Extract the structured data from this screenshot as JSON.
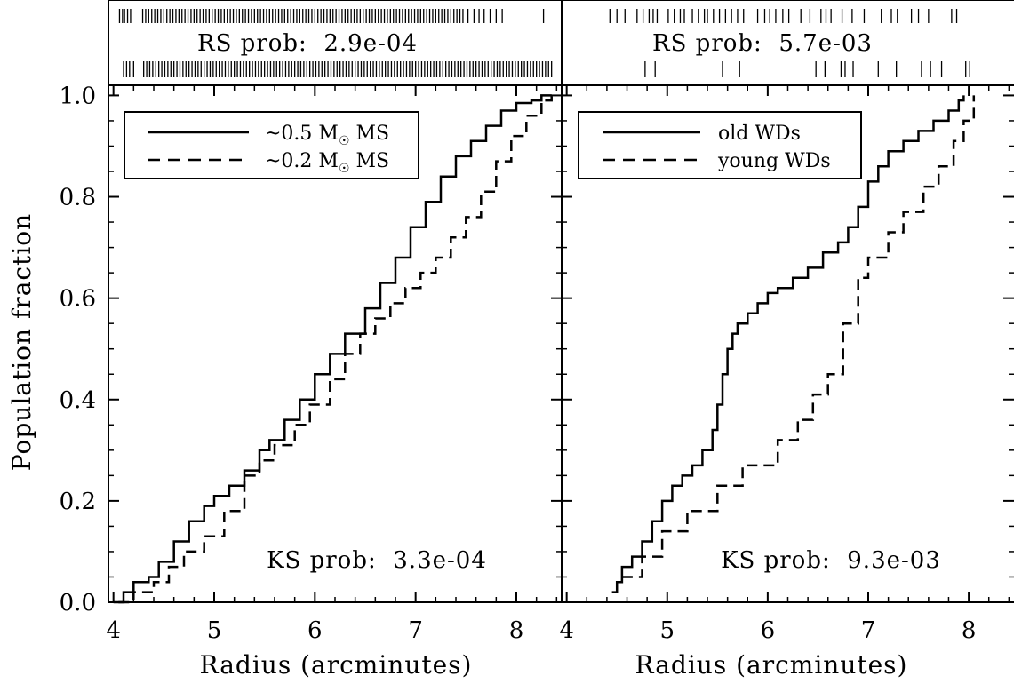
{
  "ylabel": "Population fraction",
  "panels": [
    {
      "xlabel": "Radius (arcminutes)",
      "rs_text": "RS prob:  2.9e-04",
      "ks_text": "KS prob:  3.3e-04",
      "legend": [
        {
          "prefix": "~0.5 M",
          "suffix": " MS",
          "style": "solid"
        },
        {
          "prefix": "~0.2 M",
          "suffix": " MS",
          "style": "dashed"
        }
      ]
    },
    {
      "xlabel": "Radius (arcminutes)",
      "rs_text": "RS prob:  5.7e-03",
      "ks_text": "KS prob:  9.3e-03",
      "legend": [
        {
          "label": "old WDs",
          "style": "solid"
        },
        {
          "label": "young WDs",
          "style": "dashed"
        }
      ]
    }
  ],
  "chart_data": [
    {
      "type": "line",
      "subtype": "cumulative-distribution",
      "xlim": [
        3.95,
        8.45
      ],
      "ylim": [
        0,
        1.02
      ],
      "xticks": [
        "4",
        "5",
        "6",
        "7",
        "8"
      ],
      "yticks": [
        "0.0",
        "0.2",
        "0.4",
        "0.6",
        "0.8",
        "1.0"
      ],
      "xlabel": "Radius (arcminutes)",
      "ylabel": "Population fraction",
      "legend_position": "top-left",
      "annotations": [
        "RS prob:  2.9e-04",
        "KS prob:  3.3e-04"
      ],
      "series": [
        {
          "name": "~0.5 M☉ MS",
          "style": "solid",
          "x": [
            4.0,
            4.1,
            4.2,
            4.35,
            4.45,
            4.6,
            4.75,
            4.9,
            5.0,
            5.15,
            5.3,
            5.45,
            5.55,
            5.7,
            5.85,
            6.0,
            6.15,
            6.3,
            6.5,
            6.65,
            6.8,
            6.95,
            7.1,
            7.25,
            7.4,
            7.55,
            7.7,
            7.85,
            8.0,
            8.15,
            8.25,
            8.35
          ],
          "y": [
            0.0,
            0.02,
            0.04,
            0.05,
            0.08,
            0.12,
            0.16,
            0.19,
            0.21,
            0.23,
            0.26,
            0.3,
            0.32,
            0.36,
            0.4,
            0.45,
            0.49,
            0.53,
            0.58,
            0.63,
            0.68,
            0.74,
            0.79,
            0.84,
            0.88,
            0.91,
            0.94,
            0.97,
            0.985,
            0.99,
            1.0,
            1.0
          ]
        },
        {
          "name": "~0.2 M☉ MS",
          "style": "dashed",
          "x": [
            4.05,
            4.2,
            4.4,
            4.55,
            4.7,
            4.9,
            5.1,
            5.3,
            5.45,
            5.6,
            5.8,
            5.95,
            6.15,
            6.3,
            6.45,
            6.6,
            6.75,
            6.9,
            7.05,
            7.2,
            7.35,
            7.5,
            7.65,
            7.8,
            7.95,
            8.1,
            8.25,
            8.35
          ],
          "y": [
            0.0,
            0.02,
            0.04,
            0.07,
            0.1,
            0.13,
            0.18,
            0.25,
            0.28,
            0.31,
            0.35,
            0.39,
            0.44,
            0.49,
            0.53,
            0.56,
            0.59,
            0.62,
            0.65,
            0.68,
            0.72,
            0.76,
            0.81,
            0.87,
            0.92,
            0.96,
            0.99,
            1.0
          ]
        }
      ],
      "rug_top": [
        4.06,
        4.09,
        4.11,
        4.14,
        4.17,
        4.29,
        4.32,
        4.35,
        4.38,
        4.41,
        4.44,
        4.47,
        4.5,
        4.53,
        4.56,
        4.59,
        4.62,
        4.65,
        4.68,
        4.71,
        4.74,
        4.77,
        4.8,
        4.83,
        4.86,
        4.89,
        4.92,
        4.95,
        4.98,
        5.01,
        5.04,
        5.07,
        5.1,
        5.13,
        5.16,
        5.19,
        5.22,
        5.25,
        5.28,
        5.31,
        5.34,
        5.37,
        5.4,
        5.43,
        5.46,
        5.49,
        5.52,
        5.55,
        5.58,
        5.61,
        5.64,
        5.67,
        5.7,
        5.73,
        5.76,
        5.79,
        5.82,
        5.85,
        5.88,
        5.91,
        5.94,
        5.97,
        6.0,
        6.03,
        6.06,
        6.09,
        6.12,
        6.15,
        6.18,
        6.21,
        6.24,
        6.27,
        6.3,
        6.33,
        6.36,
        6.39,
        6.42,
        6.45,
        6.48,
        6.51,
        6.54,
        6.57,
        6.6,
        6.63,
        6.66,
        6.69,
        6.72,
        6.75,
        6.78,
        6.81,
        6.84,
        6.87,
        6.9,
        6.93,
        6.96,
        6.99,
        7.02,
        7.05,
        7.08,
        7.11,
        7.14,
        7.17,
        7.2,
        7.23,
        7.26,
        7.29,
        7.32,
        7.35,
        7.38,
        7.41,
        7.44,
        7.47,
        7.52,
        7.58,
        7.63,
        7.68,
        7.74,
        7.8,
        7.86,
        8.27
      ],
      "rug_bottom": [
        4.1,
        4.13,
        4.16,
        4.2,
        4.3,
        4.33,
        4.36,
        4.39,
        4.42,
        4.45,
        4.48,
        4.51,
        4.54,
        4.57,
        4.6,
        4.63,
        4.66,
        4.69,
        4.72,
        4.75,
        4.78,
        4.81,
        4.84,
        4.87,
        4.9,
        4.93,
        4.96,
        4.99,
        5.02,
        5.05,
        5.08,
        5.11,
        5.14,
        5.17,
        5.2,
        5.23,
        5.26,
        5.29,
        5.32,
        5.35,
        5.38,
        5.41,
        5.44,
        5.47,
        5.5,
        5.53,
        5.56,
        5.59,
        5.62,
        5.65,
        5.68,
        5.71,
        5.74,
        5.77,
        5.8,
        5.83,
        5.86,
        5.89,
        5.92,
        5.95,
        5.98,
        6.01,
        6.04,
        6.07,
        6.1,
        6.13,
        6.16,
        6.19,
        6.22,
        6.25,
        6.28,
        6.31,
        6.34,
        6.37,
        6.4,
        6.43,
        6.46,
        6.49,
        6.52,
        6.55,
        6.58,
        6.61,
        6.64,
        6.67,
        6.7,
        6.73,
        6.76,
        6.79,
        6.82,
        6.85,
        6.88,
        6.91,
        6.94,
        6.97,
        7.0,
        7.03,
        7.06,
        7.09,
        7.12,
        7.15,
        7.18,
        7.21,
        7.24,
        7.27,
        7.3,
        7.33,
        7.36,
        7.39,
        7.42,
        7.45,
        7.48,
        7.51,
        7.54,
        7.57,
        7.6,
        7.63,
        7.66,
        7.69,
        7.72,
        7.75,
        7.78,
        7.81,
        7.84,
        7.87,
        7.9,
        7.93,
        7.96,
        7.99,
        8.02,
        8.05,
        8.08,
        8.11,
        8.14,
        8.17,
        8.2,
        8.23,
        8.26,
        8.29,
        8.32,
        8.35
      ]
    },
    {
      "type": "line",
      "subtype": "cumulative-distribution",
      "xlim": [
        3.95,
        8.45
      ],
      "ylim": [
        0,
        1.02
      ],
      "xticks": [
        "4",
        "5",
        "6",
        "7",
        "8"
      ],
      "yticks": [
        "0.0",
        "0.2",
        "0.4",
        "0.6",
        "0.8",
        "1.0"
      ],
      "xlabel": "Radius (arcminutes)",
      "legend_position": "top-left",
      "annotations": [
        "RS prob:  5.7e-03",
        "KS prob:  9.3e-03"
      ],
      "series": [
        {
          "name": "old WDs",
          "style": "solid",
          "x": [
            4.45,
            4.5,
            4.55,
            4.65,
            4.75,
            4.85,
            4.95,
            5.05,
            5.15,
            5.25,
            5.35,
            5.45,
            5.5,
            5.55,
            5.6,
            5.65,
            5.7,
            5.8,
            5.9,
            6.0,
            6.1,
            6.25,
            6.4,
            6.55,
            6.7,
            6.8,
            6.9,
            7.0,
            7.1,
            7.2,
            7.35,
            7.5,
            7.65,
            7.8,
            7.9,
            7.95
          ],
          "y": [
            0.02,
            0.04,
            0.07,
            0.09,
            0.12,
            0.16,
            0.2,
            0.23,
            0.25,
            0.27,
            0.3,
            0.34,
            0.39,
            0.45,
            0.5,
            0.53,
            0.55,
            0.57,
            0.59,
            0.61,
            0.62,
            0.64,
            0.66,
            0.69,
            0.71,
            0.74,
            0.78,
            0.83,
            0.86,
            0.89,
            0.91,
            0.93,
            0.95,
            0.97,
            0.99,
            1.0
          ]
        },
        {
          "name": "young WDs",
          "style": "dashed",
          "x": [
            4.55,
            4.75,
            4.95,
            5.2,
            5.5,
            5.75,
            6.1,
            6.3,
            6.45,
            6.6,
            6.75,
            6.9,
            7.0,
            7.2,
            7.35,
            7.55,
            7.7,
            7.85,
            7.95,
            8.05
          ],
          "y": [
            0.05,
            0.09,
            0.14,
            0.18,
            0.23,
            0.27,
            0.32,
            0.36,
            0.41,
            0.45,
            0.55,
            0.64,
            0.68,
            0.73,
            0.77,
            0.82,
            0.86,
            0.91,
            0.95,
            1.0
          ]
        }
      ],
      "rug_top": [
        4.43,
        4.5,
        4.58,
        4.7,
        4.76,
        4.82,
        4.86,
        4.9,
        5.01,
        5.07,
        5.13,
        5.17,
        5.25,
        5.31,
        5.37,
        5.4,
        5.46,
        5.52,
        5.58,
        5.64,
        5.7,
        5.76,
        5.9,
        5.97,
        6.02,
        6.08,
        6.15,
        6.21,
        6.33,
        6.42,
        6.53,
        6.58,
        6.63,
        6.74,
        6.84,
        6.96,
        7.13,
        7.23,
        7.29,
        7.43,
        7.5,
        7.6,
        7.83,
        7.88
      ],
      "rug_bottom": [
        4.78,
        4.88,
        5.55,
        5.72,
        6.48,
        6.57,
        6.73,
        6.77,
        6.85,
        7.1,
        7.28,
        7.53,
        7.62,
        7.73,
        7.97,
        8.01
      ]
    }
  ]
}
